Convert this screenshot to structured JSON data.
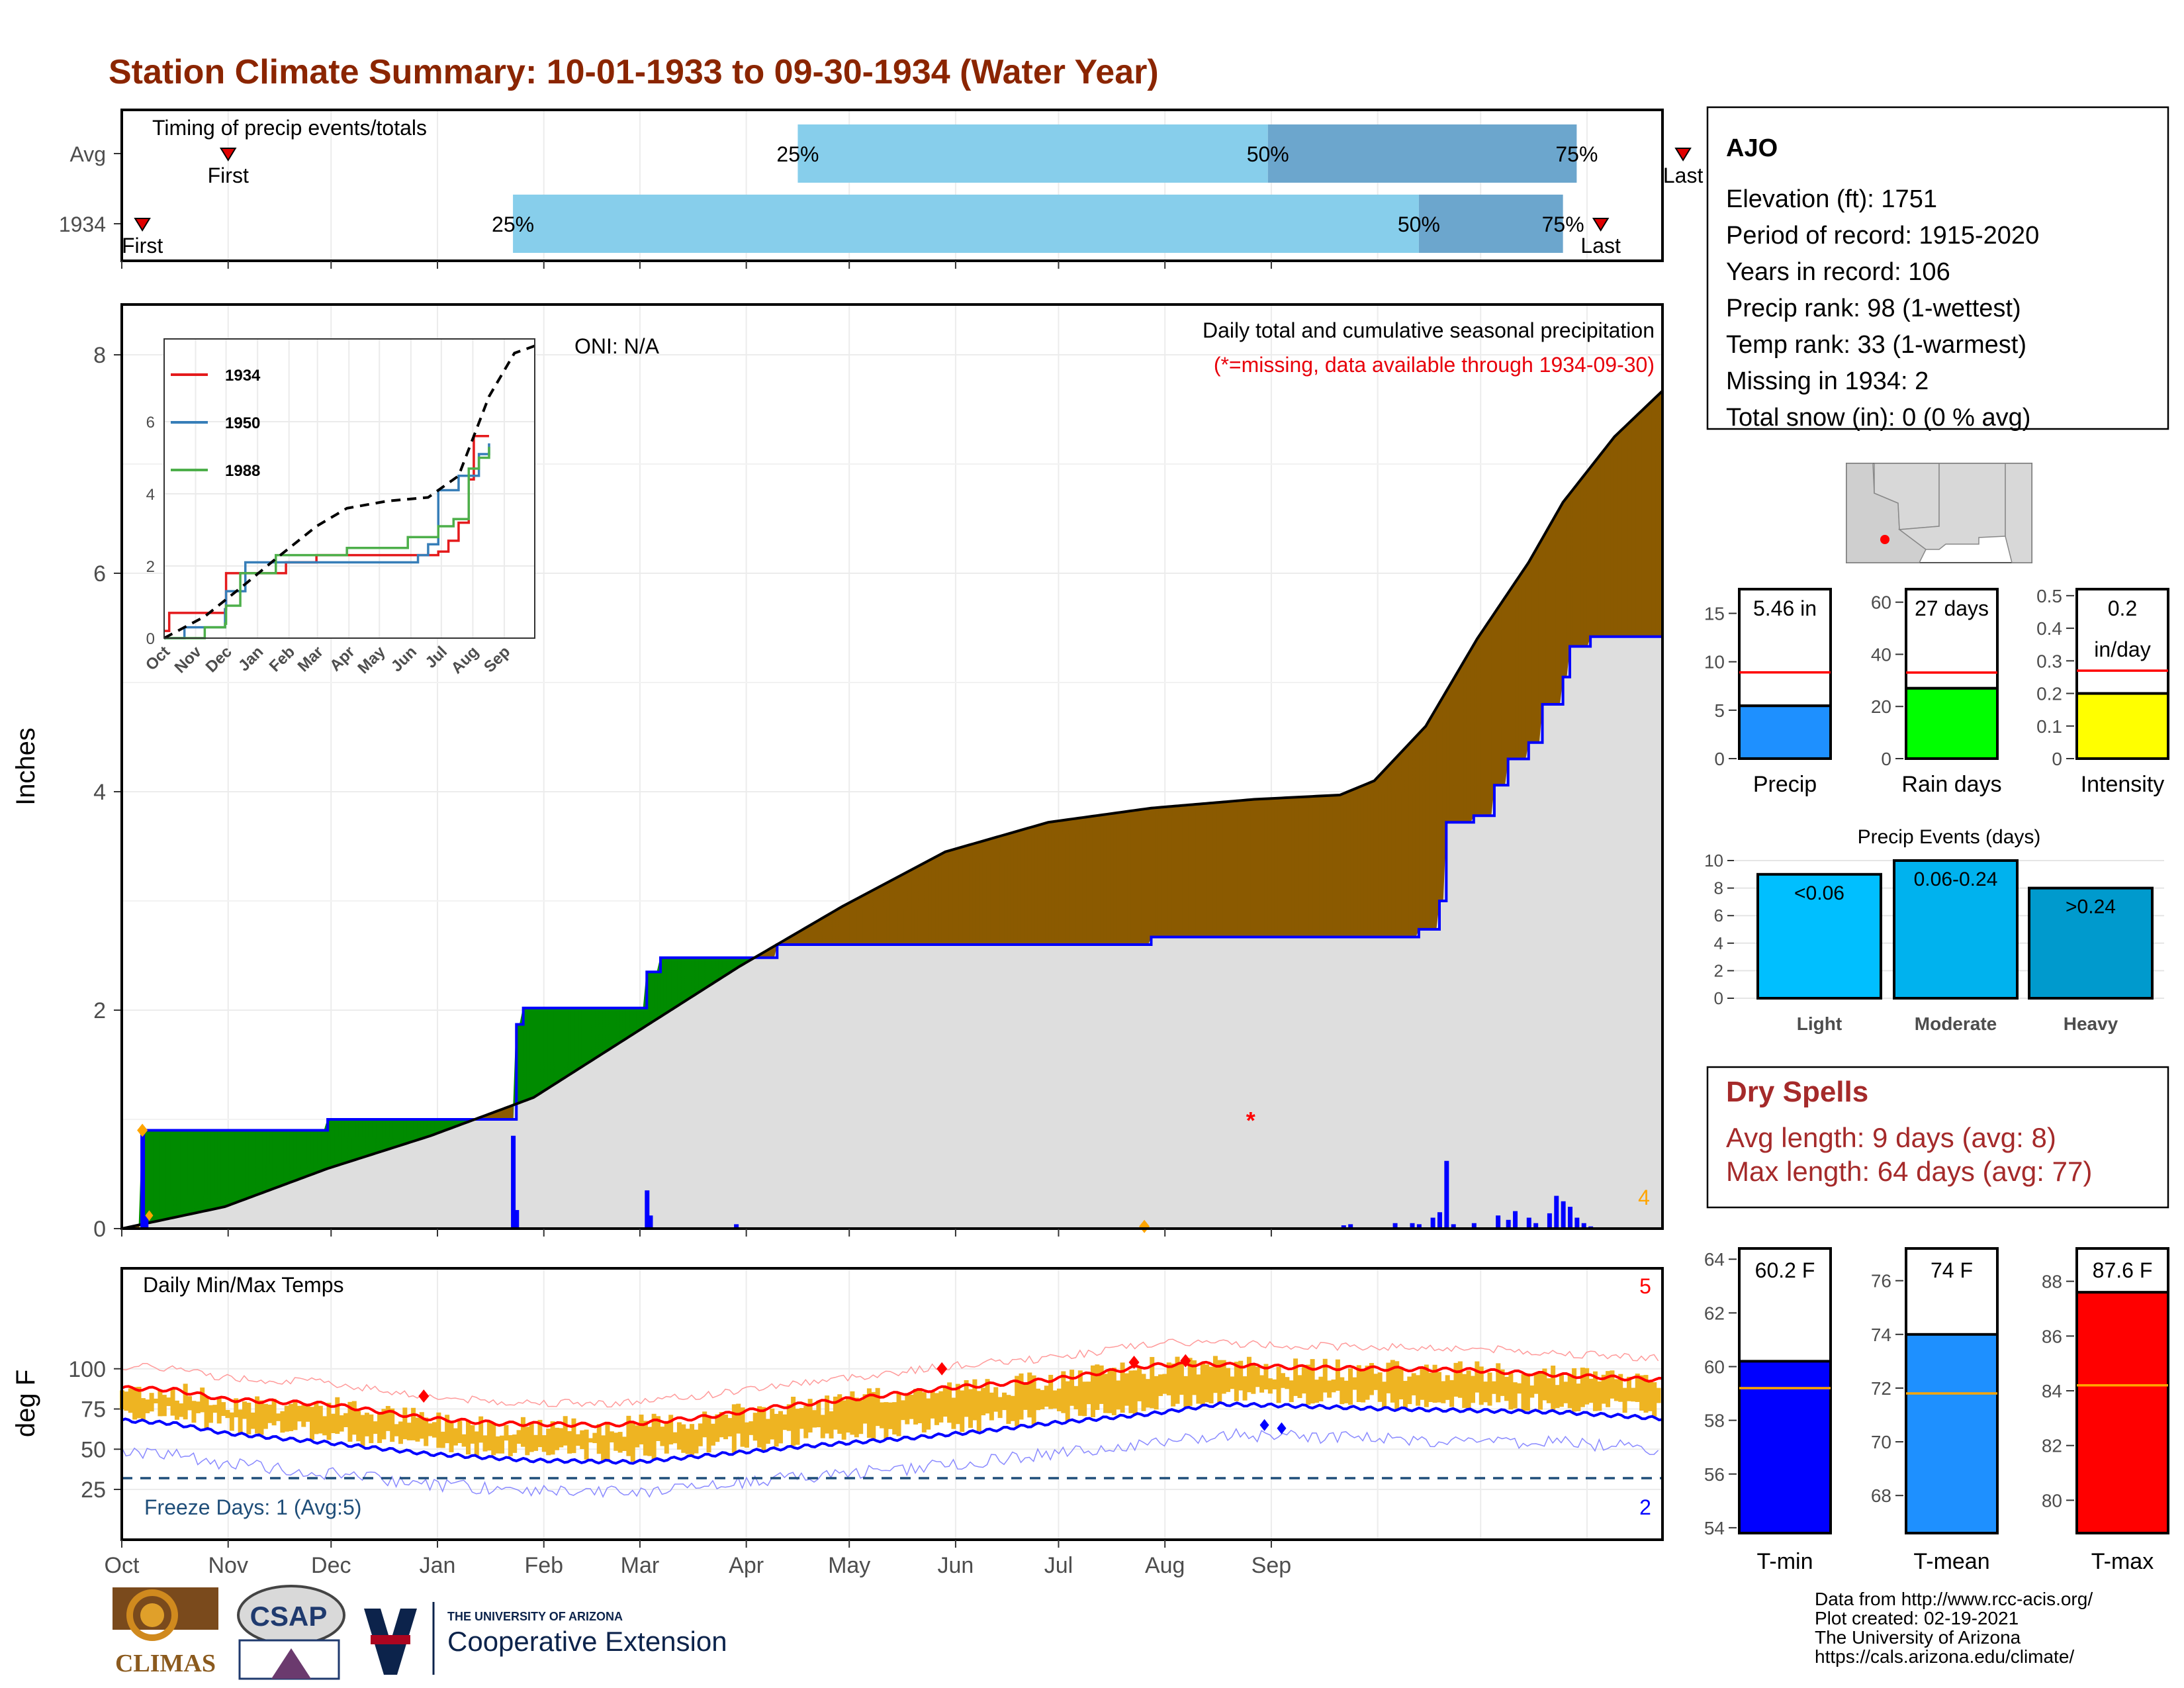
{
  "title": "Station Climate Summary: 10-01-1933 to 09-30-1934 (Water Year)",
  "timing": {
    "label": "Timing of precip events/totals",
    "rows": [
      {
        "name": "Avg",
        "first_day": 31,
        "p25": 197,
        "p50": 334,
        "p75": 424,
        "last_day": 455,
        "first_label": "First",
        "last_label": "Last",
        "p25_label": "25%",
        "p50_label": "50%",
        "p75_label": "75%"
      },
      {
        "name": "1934",
        "first_day": 6,
        "p25": 114,
        "p50": 378,
        "p75": 420,
        "last_day": 431,
        "first_label": "First",
        "last_label": "Last",
        "p25_label": "25%",
        "p50_label": "50%",
        "p75_label": "75%"
      }
    ]
  },
  "months": [
    "Oct",
    "Nov",
    "Dec",
    "Jan",
    "Feb",
    "Mar",
    "Apr",
    "May",
    "Jun",
    "Jul",
    "Aug",
    "Sep"
  ],
  "precip_panel": {
    "ylabel": "Inches",
    "yticks": [
      0,
      2,
      4,
      6,
      8
    ],
    "oni": "ONI: N/A",
    "caption": "Daily total and cumulative seasonal precipitation",
    "missing_note": "(*=missing, data available through 1934-09-30)",
    "missing_count": "4",
    "inset": {
      "months": [
        "Oct",
        "Nov",
        "Dec",
        "Jan",
        "Feb",
        "Mar",
        "Apr",
        "May",
        "Jun",
        "Jul",
        "Aug",
        "Sep"
      ],
      "yticks": [
        0,
        2,
        4,
        6
      ],
      "legend": [
        "1934",
        "1950",
        "1988"
      ]
    }
  },
  "temp_panel": {
    "ylabel": "deg F",
    "title": "Daily Min/Max Temps",
    "yticks": [
      25,
      50,
      75,
      100
    ],
    "freeze": "Freeze Days: 1 (Avg:5)",
    "top_count": "5",
    "bottom_count": "2"
  },
  "station": {
    "name": "AJO",
    "lines": [
      "Elevation (ft): 1751",
      "Period of record: 1915-2020",
      "Years in record: 106",
      "Precip rank: 98 (1-wettest)",
      "Temp rank: 33 (1-warmest)",
      "Missing in 1934: 2",
      "Total snow (in): 0 (0 % avg)"
    ]
  },
  "colors": {
    "title": "#8b2500",
    "precip_bar": "#1e90ff",
    "rain_days": "#00ff00",
    "intensity": "#ffff00",
    "light": "#00bfff",
    "moderate": "#00b2ee",
    "heavy": "#009acd",
    "tmin": "#0000ff",
    "tmean": "#1e90ff",
    "tmax": "#ff0000",
    "wet": "#8b5a00",
    "dry": "#008b00",
    "temp_band": "#eeb422",
    "avg": "#dddddd"
  },
  "summary_bars": [
    {
      "label": "Precip",
      "value": 5.46,
      "avg": 8.9,
      "ymax": 17.5,
      "ticks": [
        0,
        5,
        10,
        15
      ],
      "text": "5.46 in",
      "color": "#1e90ff"
    },
    {
      "label": "Rain days",
      "value": 27,
      "avg": 33,
      "ymax": 65,
      "ticks": [
        0,
        20,
        40,
        60
      ],
      "text": "27 days",
      "color": "#00ff00"
    },
    {
      "label": "Intensity",
      "value": 0.2,
      "avg": 0.27,
      "ymax": 0.52,
      "ticks": [
        0.0,
        0.1,
        0.2,
        0.3,
        0.4,
        0.5
      ],
      "text": "0.2",
      "text2": "in/day",
      "color": "#ffff00"
    }
  ],
  "events": {
    "title": "Precip Events (days)",
    "ticks": [
      0,
      2,
      4,
      6,
      8,
      10
    ],
    "bars": [
      {
        "label": "Light",
        "value": 9,
        "text": "<0.06",
        "color": "#00bfff"
      },
      {
        "label": "Moderate",
        "value": 10,
        "text": "0.06-0.24",
        "color": "#00b2ee"
      },
      {
        "label": "Heavy",
        "value": 8,
        "text": ">0.24",
        "color": "#009acd"
      }
    ]
  },
  "dry_spells": {
    "title": "Dry Spells",
    "avg": "Avg length: 9 days (avg: 8)",
    "max": "Max length: 64 days (avg: 77)"
  },
  "temp_bars": [
    {
      "label": "T-min",
      "value": 60.2,
      "avg": 59.2,
      "ymin": 53.8,
      "ymax": 64.4,
      "ticks": [
        54,
        56,
        58,
        60,
        62,
        64
      ],
      "text": "60.2 F",
      "color": "#0000ff"
    },
    {
      "label": "T-mean",
      "value": 74.0,
      "avg": 71.8,
      "ymin": 66.6,
      "ymax": 77.2,
      "ticks": [
        68,
        70,
        72,
        74,
        76
      ],
      "text": "74 F",
      "color": "#1e90ff"
    },
    {
      "label": "T-max",
      "value": 87.6,
      "avg": 84.2,
      "ymin": 78.8,
      "ymax": 89.2,
      "ticks": [
        80,
        82,
        84,
        86,
        88
      ],
      "text": "87.6 F",
      "color": "#ff0000"
    }
  ],
  "footer": {
    "lines": [
      "Data from http://www.rcc-acis.org/",
      "Plot created: 02-19-2021",
      "The University of Arizona",
      "https://cals.arizona.edu/climate/"
    ],
    "climas": "CLIMAS",
    "csap": "CSAP",
    "ua_small": "THE UNIVERSITY OF ARIZONA",
    "ua_big": "Cooperative Extension"
  },
  "chart_data": {
    "type": "area",
    "x_unit": "day of water year (0 = Oct 1 1933)",
    "cumulative_1934": [
      [
        0,
        0
      ],
      [
        6,
        0.9
      ],
      [
        60,
        1.0
      ],
      [
        114,
        1.0
      ],
      [
        115,
        1.87
      ],
      [
        117,
        2.02
      ],
      [
        152,
        2.02
      ],
      [
        153,
        2.35
      ],
      [
        157,
        2.48
      ],
      [
        190,
        2.48
      ],
      [
        191,
        2.6
      ],
      [
        290,
        2.6
      ],
      [
        300,
        2.67
      ],
      [
        370,
        2.67
      ],
      [
        378,
        2.74
      ],
      [
        384,
        3.0
      ],
      [
        386,
        3.72
      ],
      [
        394,
        3.78
      ],
      [
        400,
        4.06
      ],
      [
        404,
        4.3
      ],
      [
        410,
        4.45
      ],
      [
        414,
        4.8
      ],
      [
        420,
        5.05
      ],
      [
        422,
        5.33
      ],
      [
        428,
        5.42
      ],
      [
        449,
        5.42
      ]
    ],
    "cumulative_avg": [
      [
        0,
        0
      ],
      [
        30,
        0.2
      ],
      [
        60,
        0.55
      ],
      [
        90,
        0.85
      ],
      [
        120,
        1.2
      ],
      [
        150,
        1.8
      ],
      [
        180,
        2.4
      ],
      [
        210,
        2.95
      ],
      [
        240,
        3.45
      ],
      [
        270,
        3.72
      ],
      [
        300,
        3.85
      ],
      [
        330,
        3.93
      ],
      [
        355,
        3.97
      ],
      [
        365,
        4.1
      ],
      [
        380,
        4.6
      ],
      [
        395,
        5.4
      ],
      [
        410,
        6.1
      ],
      [
        420,
        6.65
      ],
      [
        435,
        7.25
      ],
      [
        449,
        7.67
      ]
    ],
    "daily_1934": [
      [
        6,
        0.9
      ],
      [
        7,
        0.12
      ],
      [
        114,
        0.85
      ],
      [
        115,
        0.17
      ],
      [
        153,
        0.35
      ],
      [
        154,
        0.12
      ],
      [
        179,
        0.04
      ],
      [
        356,
        0.03
      ],
      [
        358,
        0.04
      ],
      [
        371,
        0.05
      ],
      [
        376,
        0.05
      ],
      [
        378,
        0.04
      ],
      [
        382,
        0.1
      ],
      [
        384,
        0.15
      ],
      [
        386,
        0.62
      ],
      [
        388,
        0.04
      ],
      [
        394,
        0.05
      ],
      [
        401,
        0.12
      ],
      [
        404,
        0.08
      ],
      [
        406,
        0.16
      ],
      [
        410,
        0.1
      ],
      [
        412,
        0.05
      ],
      [
        416,
        0.14
      ],
      [
        418,
        0.3
      ],
      [
        420,
        0.25
      ],
      [
        422,
        0.2
      ],
      [
        424,
        0.1
      ],
      [
        426,
        0.05
      ],
      [
        428,
        0.02
      ]
    ],
    "inset_series": [
      {
        "name": "1934",
        "points": [
          [
            0,
            0.2
          ],
          [
            5,
            0.7
          ],
          [
            60,
            0.8
          ],
          [
            61,
            1.8
          ],
          [
            120,
            2.1
          ],
          [
            150,
            2.3
          ],
          [
            270,
            2.4
          ],
          [
            280,
            2.7
          ],
          [
            290,
            3.2
          ],
          [
            300,
            4.4
          ],
          [
            305,
            5.6
          ],
          [
            320,
            5.6
          ]
        ]
      },
      {
        "name": "1950",
        "points": [
          [
            0,
            0
          ],
          [
            20,
            0.3
          ],
          [
            60,
            0.8
          ],
          [
            61,
            1.3
          ],
          [
            80,
            2.1
          ],
          [
            150,
            2.1
          ],
          [
            250,
            2.3
          ],
          [
            260,
            2.6
          ],
          [
            270,
            4.1
          ],
          [
            290,
            4.5
          ],
          [
            310,
            5.1
          ],
          [
            320,
            5.4
          ]
        ]
      },
      {
        "name": "1988",
        "points": [
          [
            0,
            0
          ],
          [
            40,
            0.3
          ],
          [
            60,
            0.4
          ],
          [
            61,
            0.9
          ],
          [
            75,
            1.8
          ],
          [
            110,
            2.3
          ],
          [
            180,
            2.5
          ],
          [
            240,
            2.8
          ],
          [
            270,
            3.1
          ],
          [
            285,
            3.3
          ],
          [
            300,
            4.7
          ],
          [
            310,
            5.0
          ],
          [
            320,
            5.3
          ]
        ]
      },
      {
        "name": "avg",
        "points": [
          [
            0,
            0
          ],
          [
            40,
            0.6
          ],
          [
            80,
            1.5
          ],
          [
            110,
            2.2
          ],
          [
            150,
            3.1
          ],
          [
            180,
            3.6
          ],
          [
            220,
            3.8
          ],
          [
            260,
            3.9
          ],
          [
            290,
            4.5
          ],
          [
            320,
            6.7
          ],
          [
            345,
            7.9
          ],
          [
            365,
            8.1
          ]
        ]
      }
    ],
    "temp_avg_max": [
      [
        0,
        88
      ],
      [
        15,
        87
      ],
      [
        30,
        81
      ],
      [
        60,
        78
      ],
      [
        90,
        69
      ],
      [
        110,
        66
      ],
      [
        140,
        65
      ],
      [
        150,
        66
      ],
      [
        170,
        70
      ],
      [
        190,
        76
      ],
      [
        220,
        83
      ],
      [
        240,
        88
      ],
      [
        270,
        93
      ],
      [
        290,
        99
      ],
      [
        300,
        102
      ],
      [
        315,
        103
      ],
      [
        340,
        101
      ],
      [
        370,
        100
      ],
      [
        395,
        99
      ],
      [
        420,
        96
      ],
      [
        449,
        93
      ]
    ],
    "temp_avg_min": [
      [
        0,
        68
      ],
      [
        15,
        66
      ],
      [
        30,
        60
      ],
      [
        60,
        54
      ],
      [
        90,
        47
      ],
      [
        120,
        43
      ],
      [
        150,
        42
      ],
      [
        170,
        46
      ],
      [
        200,
        52
      ],
      [
        230,
        57
      ],
      [
        250,
        61
      ],
      [
        270,
        66
      ],
      [
        300,
        72
      ],
      [
        320,
        78
      ],
      [
        340,
        77
      ],
      [
        370,
        75
      ],
      [
        395,
        74
      ],
      [
        420,
        73
      ],
      [
        449,
        69
      ]
    ]
  }
}
